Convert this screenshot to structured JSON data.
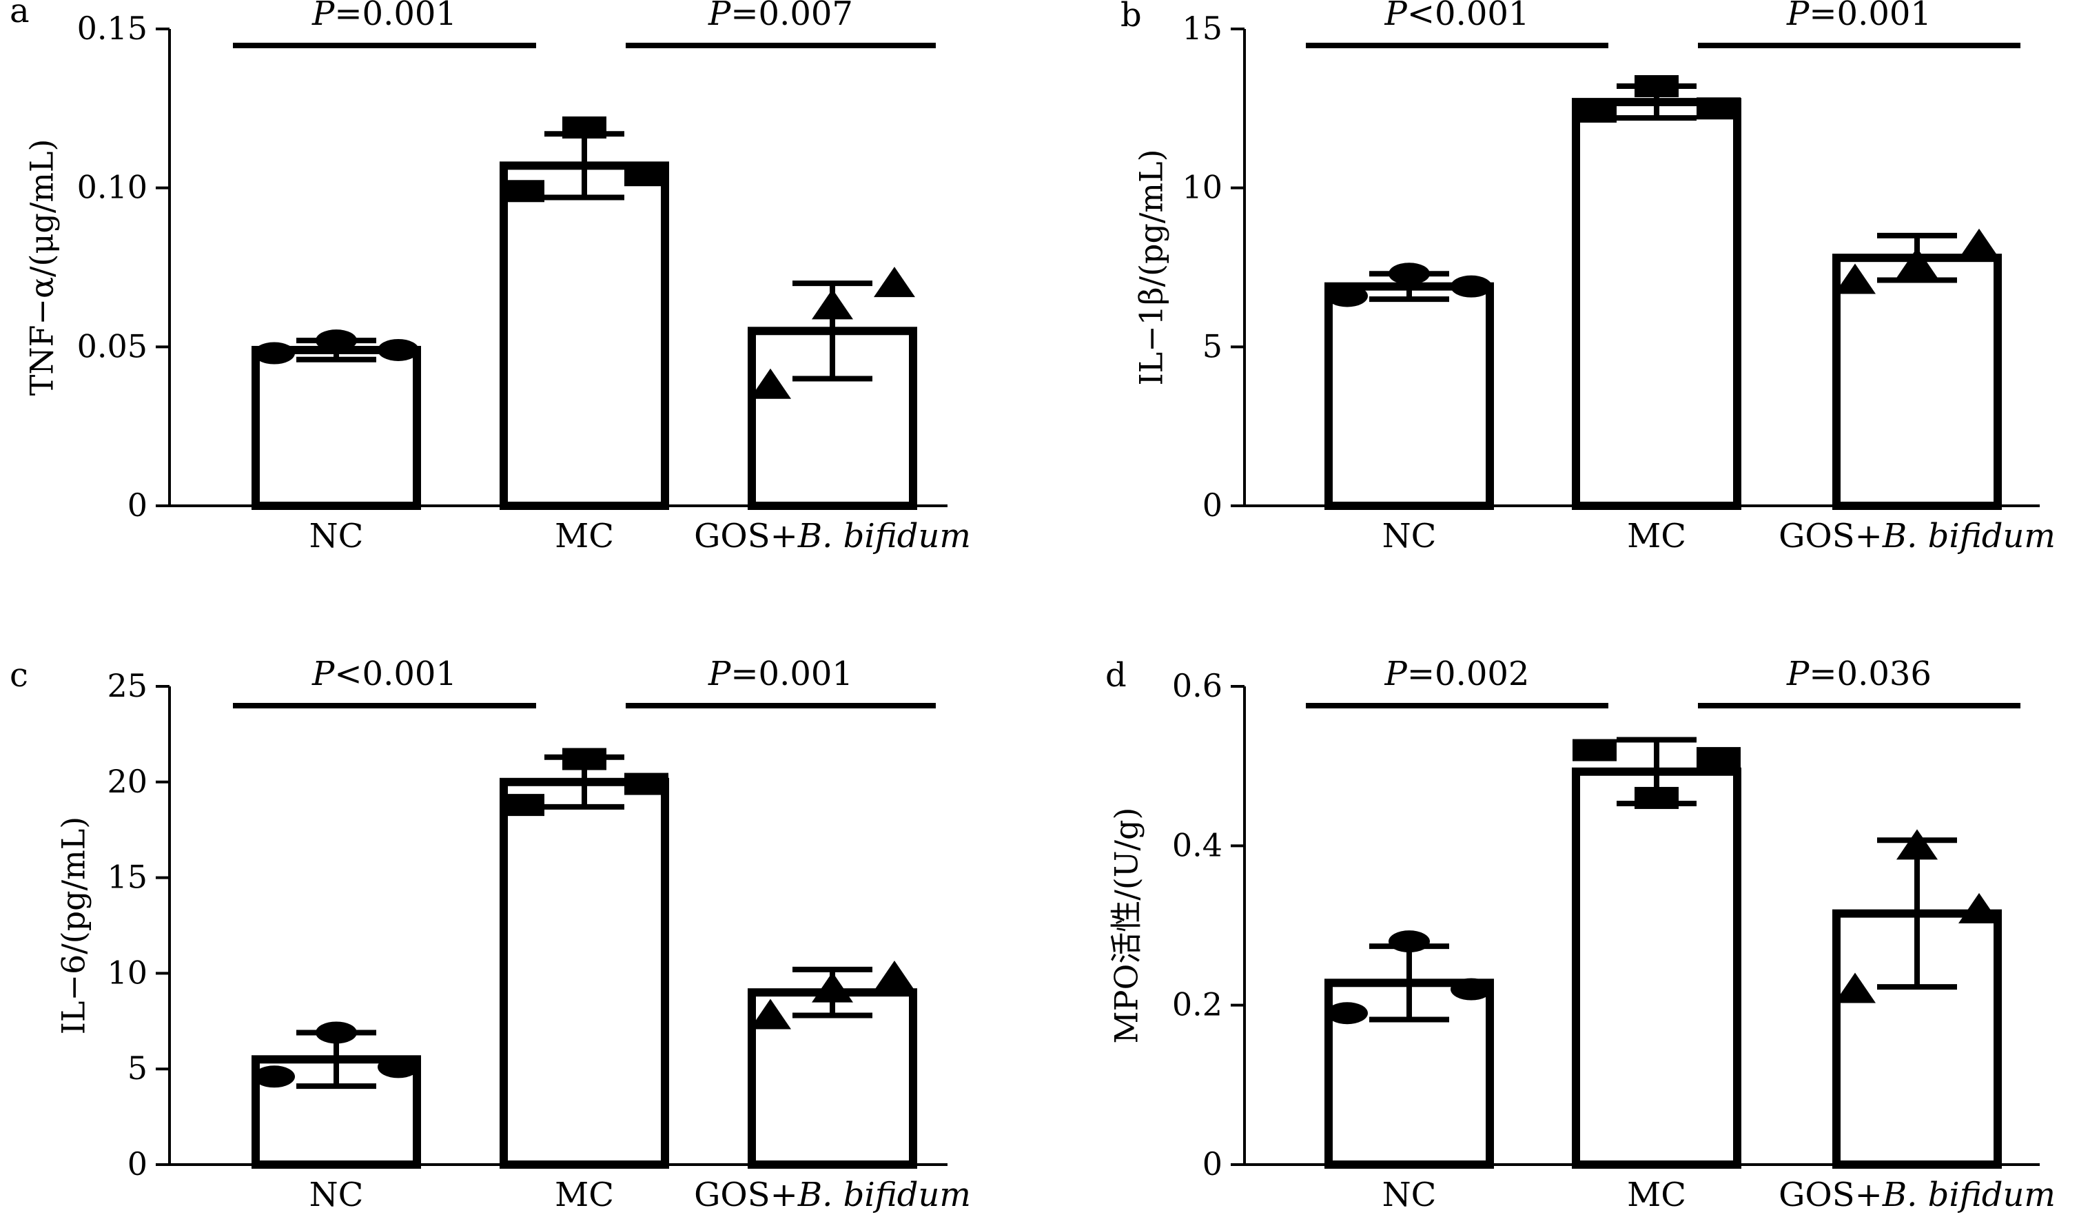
{
  "chart_data": [
    {
      "panel": "a",
      "type": "bar",
      "ylabel": "TNF−α/(μg/mL)",
      "ylim": [
        0,
        0.15
      ],
      "yticks": [
        "0",
        "0.05",
        "0.10",
        "0.15"
      ],
      "categories": [
        "NC",
        "MC",
        "GOS+B. bifidum"
      ],
      "values": [
        0.049,
        0.107,
        0.055
      ],
      "error": [
        0.003,
        0.01,
        0.015
      ],
      "points": [
        [
          0.048,
          0.052,
          0.049
        ],
        [
          0.099,
          0.119,
          0.104
        ],
        [
          0.038,
          0.063,
          0.07
        ]
      ],
      "markers": [
        "circle",
        "square",
        "triangle"
      ],
      "comparisons": [
        {
          "from": 0,
          "to": 1,
          "p_symbol": "P",
          "p_rest": "=0.001"
        },
        {
          "from": 1,
          "to": 2,
          "p_symbol": "P",
          "p_rest": "=0.007"
        }
      ]
    },
    {
      "panel": "b",
      "type": "bar",
      "ylabel": "IL−1β/(pg/mL)",
      "ylim": [
        0,
        15
      ],
      "yticks": [
        "0",
        "5",
        "10",
        "15"
      ],
      "categories": [
        "NC",
        "MC",
        "GOS+B. bifidum"
      ],
      "values": [
        6.9,
        12.7,
        7.8
      ],
      "error": [
        0.4,
        0.5,
        0.7
      ],
      "points": [
        [
          6.6,
          7.3,
          6.9
        ],
        [
          12.4,
          13.2,
          12.5
        ],
        [
          7.1,
          7.6,
          8.2
        ]
      ],
      "markers": [
        "circle",
        "square",
        "triangle"
      ],
      "comparisons": [
        {
          "from": 0,
          "to": 1,
          "p_symbol": "P",
          "p_rest": "<0.001"
        },
        {
          "from": 1,
          "to": 2,
          "p_symbol": "P",
          "p_rest": "=0.001"
        }
      ]
    },
    {
      "panel": "c",
      "type": "bar",
      "ylabel": "IL−6/(pg/mL)",
      "ylim": [
        0,
        25
      ],
      "yticks": [
        "0",
        "5",
        "10",
        "15",
        "20",
        "25"
      ],
      "categories": [
        "NC",
        "MC",
        "GOS+B. bifidum"
      ],
      "values": [
        5.5,
        20.0,
        9.0
      ],
      "error": [
        1.4,
        1.3,
        1.2
      ],
      "points": [
        [
          4.6,
          6.9,
          5.1
        ],
        [
          18.8,
          21.2,
          19.9
        ],
        [
          7.8,
          9.2,
          9.8
        ]
      ],
      "markers": [
        "circle",
        "square",
        "triangle"
      ],
      "comparisons": [
        {
          "from": 0,
          "to": 1,
          "p_symbol": "P",
          "p_rest": "<0.001"
        },
        {
          "from": 1,
          "to": 2,
          "p_symbol": "P",
          "p_rest": "=0.001"
        }
      ]
    },
    {
      "panel": "d",
      "type": "bar",
      "ylabel": "MPO活性/(U/g)",
      "ylim": [
        0,
        0.6
      ],
      "yticks": [
        "0",
        "0.2",
        "0.4",
        "0.6"
      ],
      "categories": [
        "NC",
        "MC",
        "GOS+B. bifidum"
      ],
      "values": [
        0.228,
        0.493,
        0.315
      ],
      "error": [
        0.046,
        0.04,
        0.092
      ],
      "points": [
        [
          0.19,
          0.28,
          0.22
        ],
        [
          0.52,
          0.46,
          0.51
        ],
        [
          0.22,
          0.4,
          0.32
        ]
      ],
      "markers": [
        "circle",
        "square",
        "triangle"
      ],
      "comparisons": [
        {
          "from": 0,
          "to": 1,
          "p_symbol": "P",
          "p_rest": "=0.002"
        },
        {
          "from": 1,
          "to": 2,
          "p_symbol": "P",
          "p_rest": "=0.036"
        }
      ]
    }
  ]
}
